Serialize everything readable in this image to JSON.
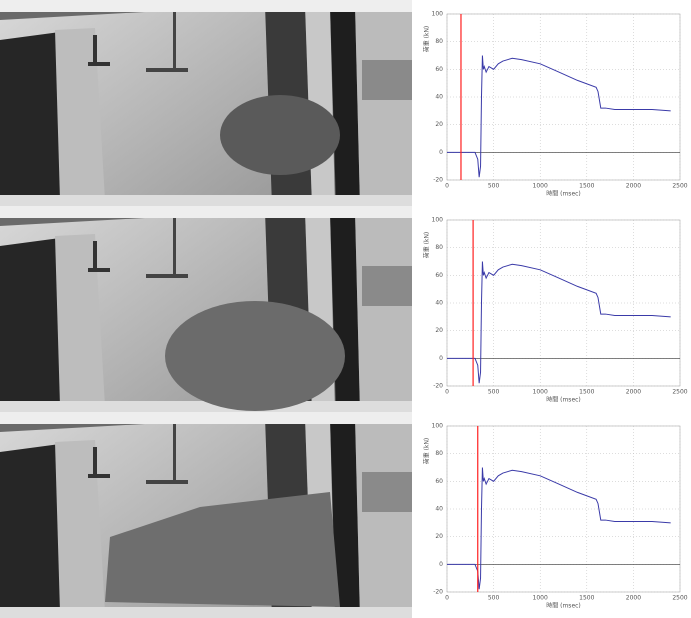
{
  "chart_data": [
    {
      "type": "line",
      "xlabel": "時間 (msec)",
      "ylabel": "荷重 (kN)",
      "xlim": [
        0,
        2500
      ],
      "ylim": [
        -20,
        100
      ],
      "xticks": [
        0,
        500,
        1000,
        1500,
        2000,
        2500
      ],
      "yticks": [
        -20,
        0,
        20,
        40,
        60,
        80,
        100
      ],
      "grid": true,
      "marker_x": 150,
      "marker_color": "#ff2020",
      "series": [
        {
          "color": "#3a3aa8",
          "x": [
            0,
            300,
            330,
            345,
            360,
            370,
            380,
            390,
            400,
            420,
            450,
            500,
            550,
            600,
            700,
            800,
            1000,
            1200,
            1400,
            1600,
            1620,
            1650,
            1700,
            1800,
            2000,
            2200,
            2400
          ],
          "values": [
            0,
            0,
            -5,
            -18,
            -10,
            40,
            70,
            60,
            62,
            58,
            62,
            60,
            64,
            66,
            68,
            67,
            64,
            58,
            52,
            47,
            44,
            32,
            32,
            31,
            31,
            31,
            30
          ]
        }
      ]
    },
    {
      "type": "line",
      "xlabel": "時間 (msec)",
      "ylabel": "荷重 (kN)",
      "xlim": [
        0,
        2500
      ],
      "ylim": [
        -20,
        100
      ],
      "xticks": [
        0,
        500,
        1000,
        1500,
        2000,
        2500
      ],
      "yticks": [
        -20,
        0,
        20,
        40,
        60,
        80,
        100
      ],
      "grid": true,
      "marker_x": 280,
      "marker_color": "#ff2020",
      "series": [
        {
          "color": "#3a3aa8",
          "x": [
            0,
            300,
            330,
            345,
            360,
            370,
            380,
            390,
            400,
            420,
            450,
            500,
            550,
            600,
            700,
            800,
            1000,
            1200,
            1400,
            1600,
            1620,
            1650,
            1700,
            1800,
            2000,
            2200,
            2400
          ],
          "values": [
            0,
            0,
            -5,
            -18,
            -10,
            40,
            70,
            60,
            62,
            58,
            62,
            60,
            64,
            66,
            68,
            67,
            64,
            58,
            52,
            47,
            44,
            32,
            32,
            31,
            31,
            31,
            30
          ]
        }
      ]
    },
    {
      "type": "line",
      "xlabel": "時間 (msec)",
      "ylabel": "荷重 (kN)",
      "xlim": [
        0,
        2500
      ],
      "ylim": [
        -20,
        100
      ],
      "xticks": [
        0,
        500,
        1000,
        1500,
        2000,
        2500
      ],
      "yticks": [
        -20,
        0,
        20,
        40,
        60,
        80,
        100
      ],
      "grid": true,
      "marker_x": 330,
      "marker_color": "#ff2020",
      "series": [
        {
          "color": "#3a3aa8",
          "x": [
            0,
            300,
            330,
            345,
            360,
            370,
            380,
            390,
            400,
            420,
            450,
            500,
            550,
            600,
            700,
            800,
            1000,
            1200,
            1400,
            1600,
            1620,
            1650,
            1700,
            1800,
            2000,
            2200,
            2400
          ],
          "values": [
            0,
            0,
            -5,
            -18,
            -10,
            40,
            70,
            60,
            62,
            58,
            62,
            60,
            64,
            66,
            68,
            67,
            64,
            58,
            52,
            47,
            44,
            32,
            32,
            31,
            31,
            31,
            30
          ]
        }
      ]
    }
  ]
}
